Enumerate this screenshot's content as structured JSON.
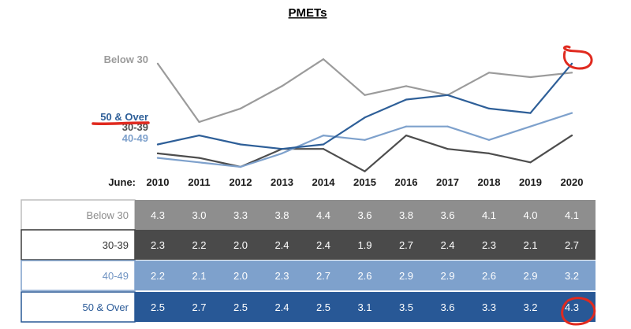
{
  "chart_data": {
    "type": "line",
    "title": "PMETs",
    "x_prefix": "June:",
    "x": [
      "2010",
      "2011",
      "2012",
      "2013",
      "2014",
      "2015",
      "2016",
      "2017",
      "2018",
      "2019",
      "2020"
    ],
    "series": [
      {
        "name": "Below 30",
        "color": "#9b9b9b",
        "values": [
          4.3,
          3.0,
          3.3,
          3.8,
          4.4,
          3.6,
          3.8,
          3.6,
          4.1,
          4.0,
          4.1
        ]
      },
      {
        "name": "30-39",
        "color": "#4d4d4d",
        "values": [
          2.3,
          2.2,
          2.0,
          2.4,
          2.4,
          1.9,
          2.7,
          2.4,
          2.3,
          2.1,
          2.7
        ]
      },
      {
        "name": "40-49",
        "color": "#7ea1cc",
        "values": [
          2.2,
          2.1,
          2.0,
          2.3,
          2.7,
          2.6,
          2.9,
          2.9,
          2.6,
          2.9,
          3.2
        ]
      },
      {
        "name": "50 & Over",
        "color": "#2e5f98",
        "values": [
          2.5,
          2.7,
          2.5,
          2.4,
          2.5,
          3.1,
          3.5,
          3.6,
          3.3,
          3.2,
          4.3
        ]
      }
    ],
    "table_rows": [
      {
        "label": "Below 30",
        "cell_bg": "#8e8e8e",
        "label_color": "#8c8c8c",
        "border": "#bdbdbd",
        "text_color": "#ffffff"
      },
      {
        "label": "30-39",
        "cell_bg": "#4a4a4a",
        "label_color": "#333333",
        "border": "#3d3d3d",
        "text_color": "#ffffff"
      },
      {
        "label": "40-49",
        "cell_bg": "#7ea1cc",
        "label_color": "#6f93c2",
        "border": "#7ea1cc",
        "text_color": "#ffffff"
      },
      {
        "label": "50 & Over",
        "cell_bg": "#285896",
        "label_color": "#2b5b98",
        "border": "#285896",
        "text_color": "#ffffff"
      }
    ],
    "annotations": "red hand-drawn circles around the 2020 value of the 50 & Over series (chart end point and table cell 4.3), and a red underline under the 50 & Over label",
    "grid": false
  },
  "accent_colors": {
    "annotation": "#e02a1f"
  }
}
